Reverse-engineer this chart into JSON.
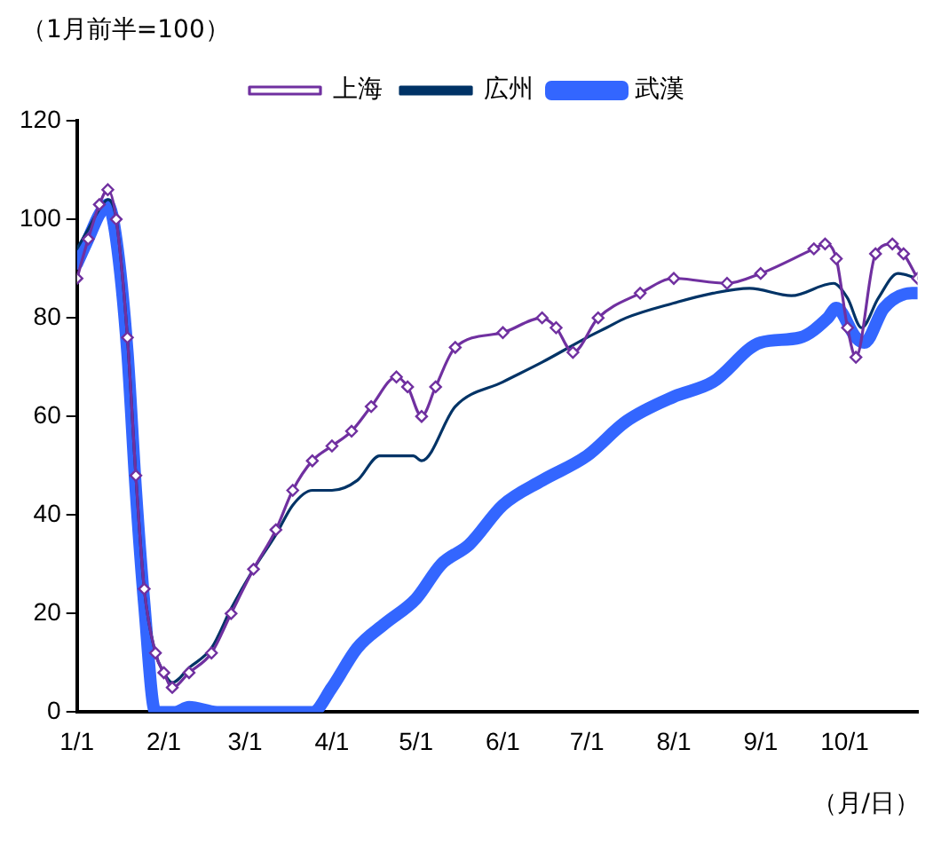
{
  "chart_data": {
    "type": "line",
    "ylabel": "（1月前半=100）",
    "xlabel": "（月/日）",
    "xlim": [
      "--01-01",
      "--10-27"
    ],
    "xticks": [
      {
        "value": "--01-01",
        "label": "1/1"
      },
      {
        "value": "--02-01",
        "label": "2/1"
      },
      {
        "value": "--03-01",
        "label": "3/1"
      },
      {
        "value": "--04-01",
        "label": "4/1"
      },
      {
        "value": "--05-01",
        "label": "5/1"
      },
      {
        "value": "--06-01",
        "label": "6/1"
      },
      {
        "value": "--07-01",
        "label": "7/1"
      },
      {
        "value": "--08-01",
        "label": "8/1"
      },
      {
        "value": "--09-01",
        "label": "9/1"
      },
      {
        "value": "--10-01",
        "label": "10/1"
      }
    ],
    "ylim": [
      0,
      120
    ],
    "yticks": [
      0,
      20,
      40,
      60,
      80,
      100,
      120
    ],
    "grid": false,
    "legend": "top",
    "series": [
      {
        "name": "上海",
        "color": "#7030a0",
        "marker": "diamond",
        "x": [
          "--01-01",
          "--01-05",
          "--01-09",
          "--01-12",
          "--01-15",
          "--01-19",
          "--01-22",
          "--01-25",
          "--01-29",
          "--02-01",
          "--02-04",
          "--02-10",
          "--02-18",
          "--02-25",
          "--03-04",
          "--03-12",
          "--03-18",
          "--03-25",
          "--04-01",
          "--04-08",
          "--04-15",
          "--04-24",
          "--04-28",
          "--05-03",
          "--05-08",
          "--05-15",
          "--06-01",
          "--06-15",
          "--06-20",
          "--06-26",
          "--07-05",
          "--07-20",
          "--08-01",
          "--08-20",
          "--09-01",
          "--09-20",
          "--09-24",
          "--09-28",
          "--10-02",
          "--10-05",
          "--10-12",
          "--10-18",
          "--10-22",
          "--10-27"
        ],
        "values": [
          88,
          96,
          103,
          106,
          100,
          76,
          48,
          25,
          12,
          8,
          5,
          8,
          12,
          20,
          29,
          37,
          45,
          51,
          54,
          57,
          62,
          68,
          66,
          60,
          66,
          74,
          77,
          80,
          78,
          73,
          80,
          85,
          88,
          87,
          89,
          94,
          95,
          92,
          78,
          72,
          93,
          95,
          93,
          88
        ]
      },
      {
        "name": "広州",
        "color": "#003366",
        "x": [
          "--01-01",
          "--01-05",
          "--01-09",
          "--01-12",
          "--01-15",
          "--01-19",
          "--01-22",
          "--01-25",
          "--01-29",
          "--02-01",
          "--02-04",
          "--02-10",
          "--02-18",
          "--02-25",
          "--03-04",
          "--03-12",
          "--03-18",
          "--03-25",
          "--04-01",
          "--04-10",
          "--04-18",
          "--04-30",
          "--05-03",
          "--05-15",
          "--06-01",
          "--06-15",
          "--07-01",
          "--07-08",
          "--07-15",
          "--08-01",
          "--08-15",
          "--08-28",
          "--09-12",
          "--09-27",
          "--10-02",
          "--10-07",
          "--10-13",
          "--10-20",
          "--10-27"
        ],
        "values": [
          94,
          98,
          102,
          104,
          100,
          76,
          48,
          25,
          12,
          8,
          6,
          9,
          13,
          21,
          29,
          36,
          42,
          45,
          45,
          47,
          52,
          52,
          51,
          62,
          67,
          71,
          76,
          78,
          80,
          83,
          85,
          86,
          84.5,
          87,
          84,
          78,
          84,
          89,
          88
        ]
      },
      {
        "name": "武漢",
        "color": "#3366ff",
        "x": [
          "--01-01",
          "--01-05",
          "--01-09",
          "--01-12",
          "--01-15",
          "--01-19",
          "--01-22",
          "--01-25",
          "--01-29",
          "--02-05",
          "--02-10",
          "--02-20",
          "--03-01",
          "--03-15",
          "--03-25",
          "--04-01",
          "--04-10",
          "--04-20",
          "--05-01",
          "--05-10",
          "--05-20",
          "--06-01",
          "--06-15",
          "--07-01",
          "--07-15",
          "--08-01",
          "--08-15",
          "--09-01",
          "--09-15",
          "--09-25",
          "--09-28",
          "--10-05",
          "--10-08",
          "--10-15",
          "--10-25",
          "--10-27"
        ],
        "values": [
          91,
          96,
          101,
          103,
          96,
          73,
          45,
          22,
          0,
          0,
          1,
          0,
          0,
          0,
          0,
          5,
          13,
          18,
          23,
          30,
          34,
          42,
          47,
          52,
          59,
          64,
          67,
          75,
          76,
          80,
          82,
          76,
          75,
          82,
          85,
          85
        ]
      }
    ]
  }
}
